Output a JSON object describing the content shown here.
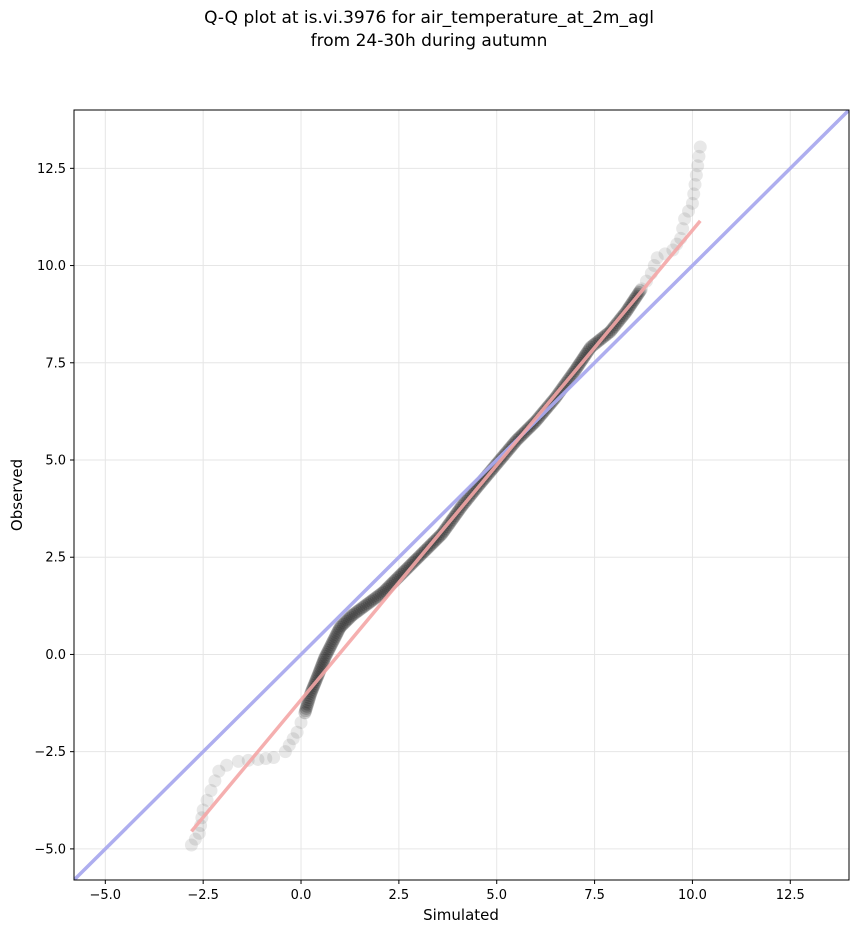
{
  "chart_data": {
    "type": "scatter",
    "title": "Q-Q plot at is.vi.3976 for air_temperature_at_2m_agl",
    "subtitle": "from 24-30h during autumn",
    "xlabel": "Simulated",
    "ylabel": "Observed",
    "xlim": [
      -5.8,
      14.0
    ],
    "ylim": [
      -5.8,
      14.0
    ],
    "xticks": [
      -5.0,
      -2.5,
      0.0,
      2.5,
      5.0,
      7.5,
      10.0,
      12.5
    ],
    "yticks": [
      -5.0,
      -2.5,
      0.0,
      2.5,
      5.0,
      7.5,
      10.0,
      12.5
    ],
    "xtick_labels": [
      "−5.0",
      "−2.5",
      "0.0",
      "2.5",
      "5.0",
      "7.5",
      "10.0",
      "12.5"
    ],
    "ytick_labels": [
      "−5.0",
      "−2.5",
      "0.0",
      "2.5",
      "5.0",
      "7.5",
      "10.0",
      "12.5"
    ],
    "grid": true,
    "reference_line": {
      "type": "y=x",
      "color": "#aaaaee"
    },
    "fit_line": {
      "x": [
        -2.8,
        10.2
      ],
      "y": [
        -4.55,
        11.15
      ],
      "color": "#f4a6a6"
    },
    "colors": {
      "points": "#000000",
      "reference": "#aaaaee",
      "fit": "#f4a6a6"
    },
    "quantile_curve": {
      "x": [
        -2.8,
        -2.6,
        -2.5,
        -2.3,
        -2.1,
        -1.9,
        -1.6,
        -1.1,
        -0.7,
        -0.4,
        -0.1,
        0.1,
        0.25,
        0.45,
        0.6,
        0.8,
        1.0,
        1.3,
        1.7,
        2.1,
        2.6,
        3.1,
        3.6,
        4.1,
        4.5,
        5.0,
        5.5,
        6.0,
        6.5,
        7.0,
        7.4,
        7.9,
        8.3,
        8.7,
        8.95,
        9.1,
        9.5,
        9.7,
        9.8,
        10.0,
        10.2
      ],
      "y": [
        -4.9,
        -4.6,
        -4.0,
        -3.5,
        -3.0,
        -2.85,
        -2.75,
        -2.7,
        -2.65,
        -2.5,
        -2.0,
        -1.5,
        -1.0,
        -0.5,
        -0.1,
        0.3,
        0.7,
        1.0,
        1.3,
        1.6,
        2.1,
        2.6,
        3.1,
        3.8,
        4.3,
        4.9,
        5.5,
        6.0,
        6.6,
        7.3,
        7.9,
        8.3,
        8.8,
        9.4,
        9.8,
        10.2,
        10.4,
        10.7,
        11.2,
        11.6,
        13.05
      ]
    }
  }
}
